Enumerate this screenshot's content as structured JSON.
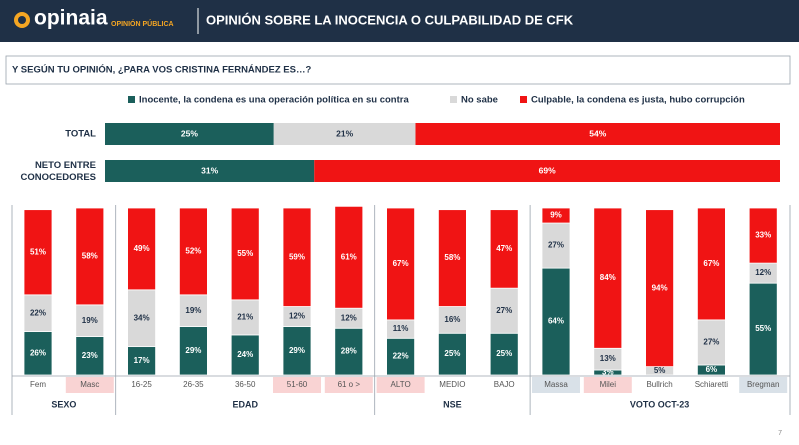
{
  "header": {
    "logo": "opinaia",
    "logo_sub": "OPINIÓN PÚBLICA",
    "title": "OPINIÓN SOBRE LA INOCENCIA O CULPABILIDAD DE CFK"
  },
  "question": "Y SEGÚN TU OPINIÓN, ¿PARA VOS CRISTINA FERNÁNDEZ ES…?",
  "page_number": "7",
  "chart_data": [
    {
      "type": "bar",
      "orientation": "horizontal",
      "stacked": true,
      "xlim": [
        0,
        100
      ],
      "categories": [
        "TOTAL",
        "NETO ENTRE CONOCEDORES"
      ],
      "series": [
        {
          "name": "Inocente, la condena es una operación política en su contra",
          "color": "#1b5f5b",
          "values": [
            25,
            31
          ],
          "value_labels": [
            "25%",
            "31%"
          ]
        },
        {
          "name": "No sabe",
          "color": "#d9d9d9",
          "values": [
            21,
            null
          ],
          "value_labels": [
            "21%",
            null
          ]
        },
        {
          "name": "Culpable, la condena es justa, hubo corrupción",
          "color": "#f01414",
          "values": [
            54,
            69
          ],
          "value_labels": [
            "54%",
            "69%"
          ]
        }
      ]
    },
    {
      "type": "bar",
      "orientation": "vertical",
      "stacked": true,
      "ylim": [
        0,
        100
      ],
      "groups": [
        {
          "name": "SEXO",
          "categories": [
            "Fem",
            "Masc"
          ]
        },
        {
          "name": "EDAD",
          "categories": [
            "16-25",
            "26-35",
            "36-50",
            "51-60",
            "61 o >"
          ]
        },
        {
          "name": "NSE",
          "categories": [
            "ALTO",
            "MEDIO",
            "BAJO"
          ]
        },
        {
          "name": "VOTO OCT-23",
          "categories": [
            "Massa",
            "Milei",
            "Bullrich",
            "Schiaretti",
            "Bregman"
          ]
        }
      ],
      "category_fills": [
        "#ffffff",
        "#f9d3d3",
        "#ffffff",
        "#ffffff",
        "#ffffff",
        "#f9d3d3",
        "#f9d3d3",
        "#f9d3d3",
        "#ffffff",
        "#ffffff",
        "#d9e1e8",
        "#f9d3d3",
        "#ffffff",
        "#ffffff",
        "#d9e1e8"
      ],
      "series": [
        {
          "color": "#1b5f5b",
          "values": [
            26,
            23,
            17,
            29,
            24,
            29,
            28,
            22,
            25,
            25,
            64,
            3,
            null,
            6,
            55
          ],
          "value_labels": [
            "26%",
            "23%",
            "17%",
            "29%",
            "24%",
            "29%",
            "28%",
            "22%",
            "25%",
            "25%",
            "64%",
            "3%",
            null,
            "6%",
            "55%"
          ]
        },
        {
          "color": "#d9d9d9",
          "values": [
            22,
            19,
            34,
            19,
            21,
            12,
            12,
            11,
            16,
            27,
            27,
            13,
            5,
            27,
            12
          ],
          "value_labels": [
            "22%",
            "19%",
            "34%",
            "19%",
            "21%",
            "12%",
            "12%",
            "11%",
            "16%",
            "27%",
            "27%",
            "13%",
            "5%",
            "27%",
            "12%"
          ]
        },
        {
          "color": "#f01414",
          "values": [
            51,
            58,
            49,
            52,
            55,
            59,
            61,
            67,
            58,
            47,
            9,
            84,
            94,
            67,
            33
          ],
          "value_labels": [
            "51%",
            "58%",
            "49%",
            "52%",
            "55%",
            "59%",
            "61%",
            "67%",
            "58%",
            "47%",
            "9%",
            "84%",
            "94%",
            "67%",
            "33%"
          ]
        }
      ]
    }
  ]
}
